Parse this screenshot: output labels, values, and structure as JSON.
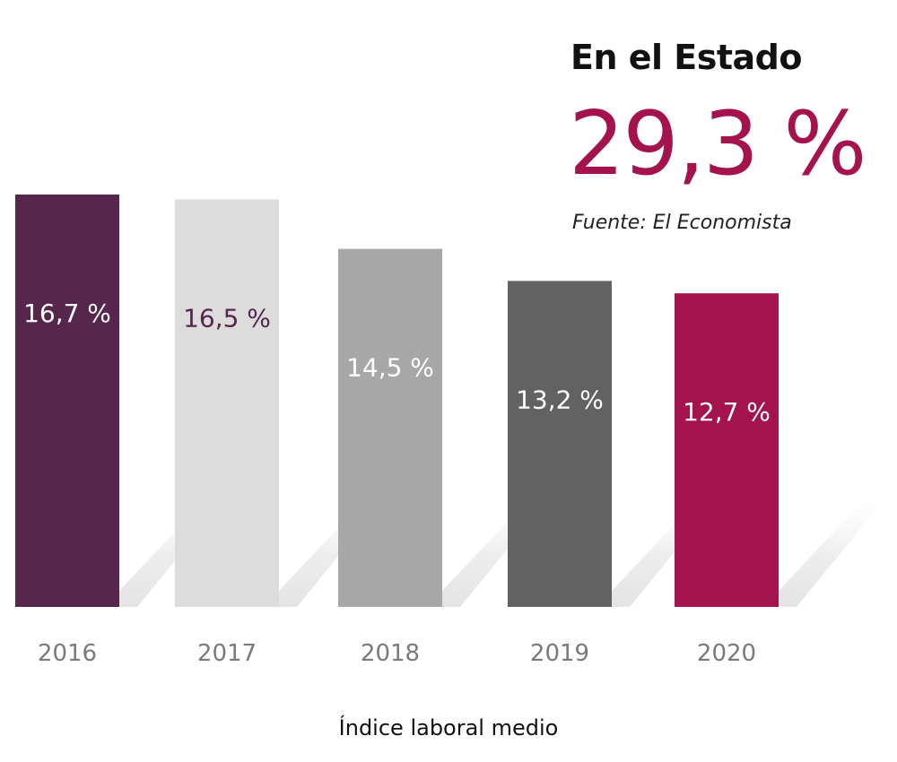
{
  "panel": {
    "title": "En el Estado",
    "value": "29,3 %",
    "source": "Fuente: El Economista"
  },
  "chart_data": {
    "type": "bar",
    "categories": [
      "2016",
      "2017",
      "2018",
      "2019",
      "2020"
    ],
    "values": [
      16.7,
      16.5,
      14.5,
      13.2,
      12.7
    ],
    "data_labels": [
      "16,7 %",
      "16,5 %",
      "14,5 %",
      "13,2 %",
      "12,7 %"
    ],
    "bar_colors": [
      "#56264d",
      "#dcdcdc",
      "#a7a7a7",
      "#626262",
      "#a5134f"
    ],
    "label_colors": [
      "#ffffff",
      "#56264d",
      "#ffffff",
      "#ffffff",
      "#ffffff"
    ],
    "xlabel": "Índice laboral medio",
    "ylabel": "",
    "ylim": [
      0,
      16.7
    ],
    "grid": false,
    "legend": "none"
  }
}
